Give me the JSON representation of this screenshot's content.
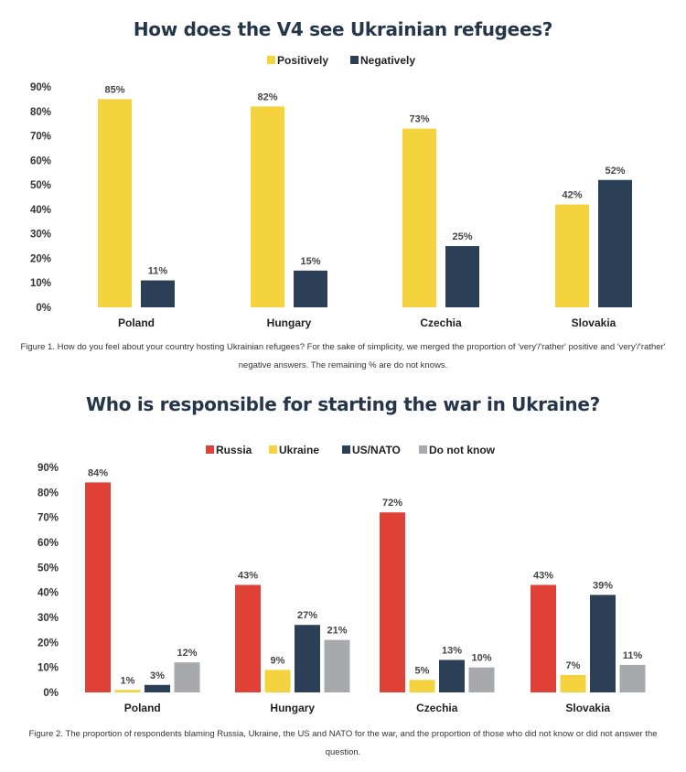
{
  "chart_data": [
    {
      "type": "bar",
      "title": "How does the V4 see Ukrainian refugees?",
      "caption_lines": [
        "Figure 1. How do you feel about your country hosting Ukrainian refugees? For the sake of simplicity, we merged the proportion of 'very'/'rather' positive and 'very'/'rather'",
        "negative answers. The remaining % are do not knows."
      ],
      "categories": [
        "Poland",
        "Hungary",
        "Czechia",
        "Slovakia"
      ],
      "series": [
        {
          "name": "Positively",
          "color": "#f5d33f",
          "values": [
            85,
            82,
            73,
            42
          ],
          "labels": [
            "85%",
            "82%",
            "73%",
            "42%"
          ]
        },
        {
          "name": "Negatively",
          "color": "#2b3f57",
          "values": [
            11,
            15,
            25,
            52
          ],
          "labels": [
            "11%",
            "15%",
            "25%",
            "52%"
          ]
        }
      ],
      "yticks": [
        "0%",
        "10%",
        "20%",
        "30%",
        "40%",
        "50%",
        "60%",
        "70%",
        "80%",
        "90%"
      ],
      "ylim": [
        0,
        90
      ],
      "legend": "top-center",
      "grid": false
    },
    {
      "type": "bar",
      "title": "Who is responsible for starting the war in Ukraine?",
      "caption_lines": [
        "Figure 2. The proportion of respondents blaming Russia, Ukraine, the US and NATO for the war, and the proportion of those who did not know or did not answer the",
        "question."
      ],
      "categories": [
        "Poland",
        "Hungary",
        "Czechia",
        "Slovakia"
      ],
      "series": [
        {
          "name": "Russia",
          "color": "#df4136",
          "values": [
            84,
            43,
            72,
            43
          ],
          "labels": [
            "84%",
            "43%",
            "72%",
            "43%"
          ]
        },
        {
          "name": "Ukraine",
          "color": "#f5d33f",
          "values": [
            1,
            9,
            5,
            7
          ],
          "labels": [
            "1%",
            "9%",
            "5%",
            "7%"
          ]
        },
        {
          "name": "US/NATO",
          "color": "#2b3f57",
          "values": [
            3,
            27,
            13,
            39
          ],
          "labels": [
            "3%",
            "27%",
            "13%",
            "39%"
          ]
        },
        {
          "name": "Do not know",
          "color": "#a7a9ac",
          "values": [
            12,
            21,
            10,
            11
          ],
          "labels": [
            "12%",
            "21%",
            "10%",
            "11%"
          ]
        }
      ],
      "yticks": [
        "0%",
        "10%",
        "20%",
        "30%",
        "40%",
        "50%",
        "60%",
        "70%",
        "80%",
        "90%"
      ],
      "ylim": [
        0,
        90
      ],
      "legend": "top-center",
      "grid": false
    }
  ]
}
